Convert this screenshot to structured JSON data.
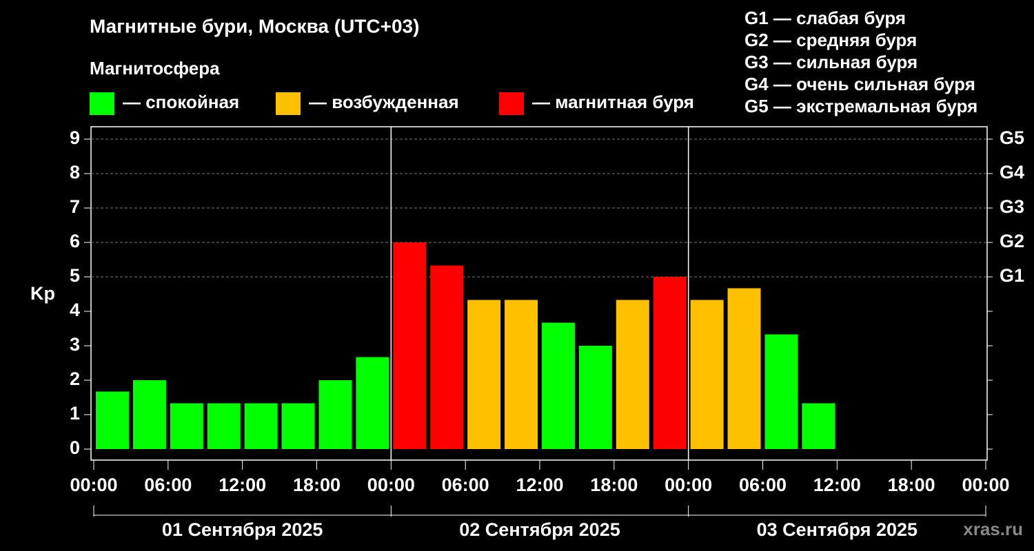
{
  "chart_data": {
    "type": "bar",
    "title": "Магнитные бури, Москва (UTC+03)",
    "subtitle": "Магнитосфера",
    "legend": [
      {
        "label": "— спокойная",
        "color": "#00ff00"
      },
      {
        "label": "— возбужденная",
        "color": "#ffc000"
      },
      {
        "label": "— магнитная буря",
        "color": "#ff0000"
      }
    ],
    "g_scale": [
      "G1 — слабая буря",
      "G2 — средняя буря",
      "G3 — сильная буря",
      "G4 — очень сильная буря",
      "G5 — экстремальная буря"
    ],
    "y_label": "Kp",
    "x": [
      1.5,
      4.5,
      7.5,
      10.5,
      13.5,
      16.5,
      19.5,
      22.5,
      25.5,
      28.5,
      31.5,
      34.5,
      37.5,
      40.5,
      43.5,
      46.5,
      49.5,
      52.5,
      55.5,
      58.5
    ],
    "values": [
      1.67,
      2,
      1.33,
      1.33,
      1.33,
      1.33,
      2,
      2.67,
      6,
      5.33,
      4.33,
      4.33,
      3.67,
      3,
      4.33,
      5,
      4.33,
      4.67,
      3.33,
      1.33
    ],
    "colors": [
      "#00ff00",
      "#00ff00",
      "#00ff00",
      "#00ff00",
      "#00ff00",
      "#00ff00",
      "#00ff00",
      "#00ff00",
      "#ff0000",
      "#ff0000",
      "#ffc000",
      "#ffc000",
      "#00ff00",
      "#00ff00",
      "#ffc000",
      "#ff0000",
      "#ffc000",
      "#ffc000",
      "#00ff00",
      "#00ff00"
    ],
    "xlim": [
      0,
      72
    ],
    "xticks": [
      {
        "value": 0,
        "label": "00:00"
      },
      {
        "value": 6,
        "label": "06:00"
      },
      {
        "value": 12,
        "label": "12:00"
      },
      {
        "value": 18,
        "label": "18:00"
      },
      {
        "value": 24,
        "label": "00:00"
      },
      {
        "value": 30,
        "label": "06:00"
      },
      {
        "value": 36,
        "label": "12:00"
      },
      {
        "value": 42,
        "label": "18:00"
      },
      {
        "value": 48,
        "label": "00:00"
      },
      {
        "value": 54,
        "label": "06:00"
      },
      {
        "value": 60,
        "label": "12:00"
      },
      {
        "value": 66,
        "label": "18:00"
      },
      {
        "value": 72,
        "label": "00:00"
      }
    ],
    "days": [
      "01 Сентября 2025",
      "02 Сентября 2025",
      "03 Сентября 2025"
    ],
    "ylim": [
      -0.32,
      9.36
    ],
    "yticks": [
      0,
      1,
      2,
      3,
      4,
      5,
      6,
      7,
      8,
      9
    ],
    "y2ticks": [
      {
        "value": 5,
        "label": "G1"
      },
      {
        "value": 6,
        "label": "G2"
      },
      {
        "value": 7,
        "label": "G3"
      },
      {
        "value": 8,
        "label": "G4"
      },
      {
        "value": 9,
        "label": "G5"
      }
    ],
    "grid": true,
    "watermark": "xras.ru"
  }
}
